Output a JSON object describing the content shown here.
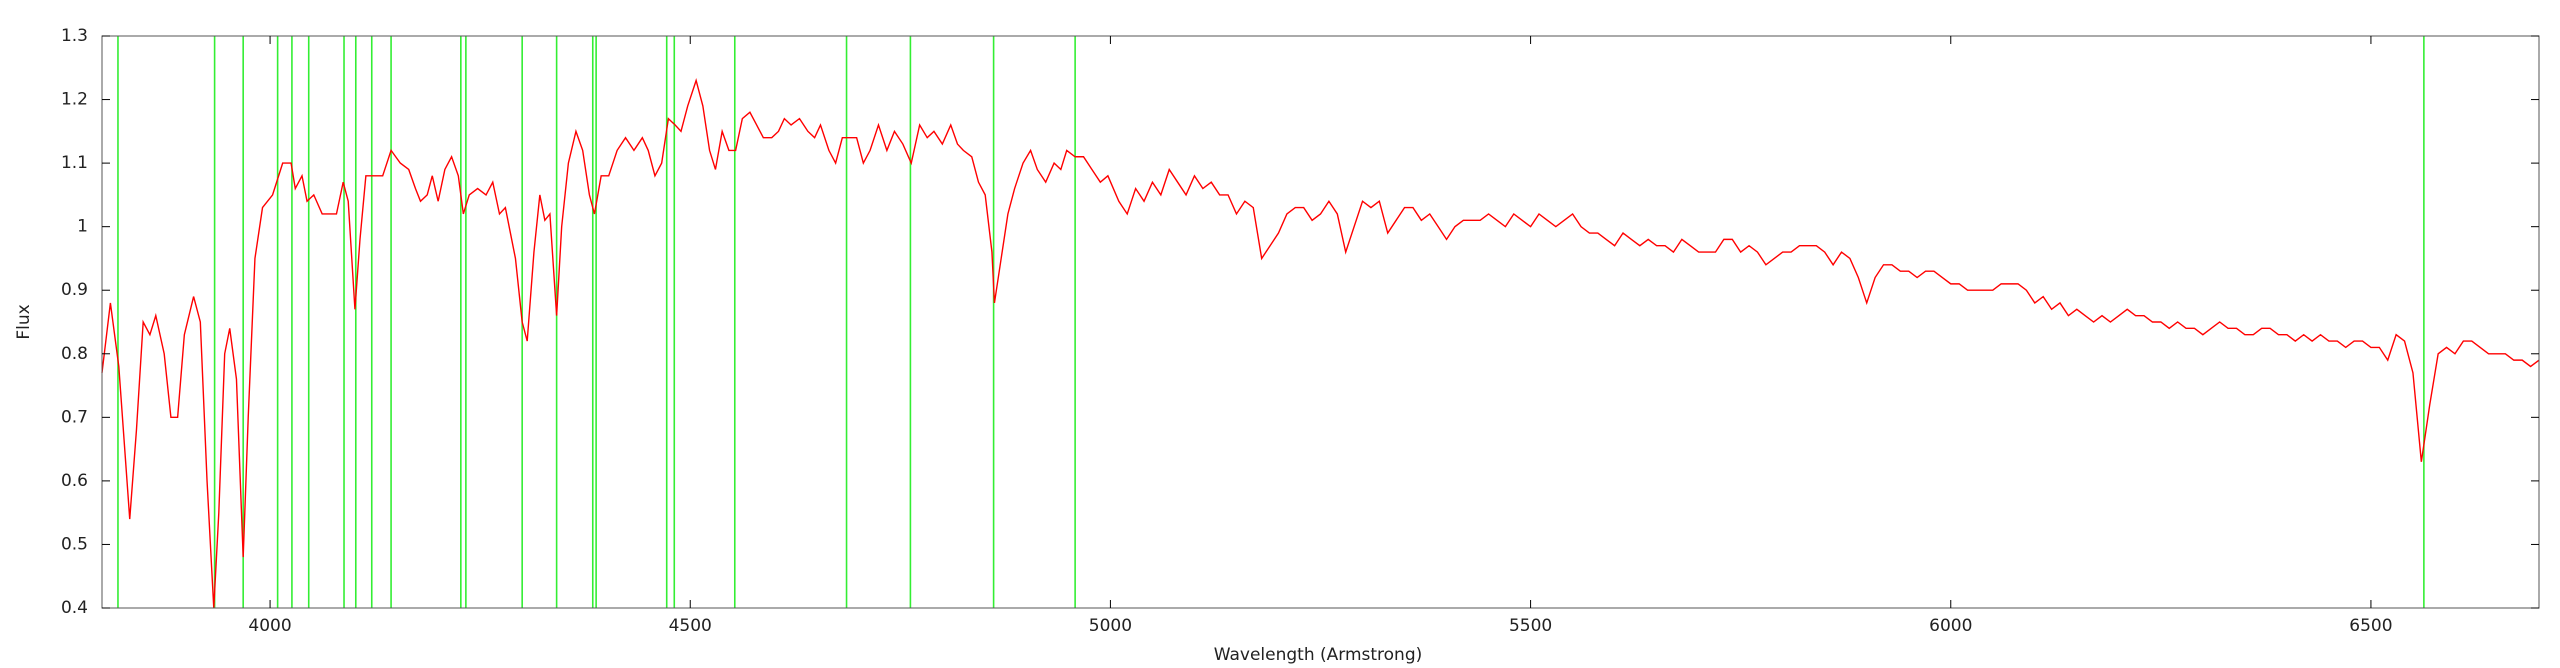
{
  "chart_data": {
    "type": "line",
    "xlabel": "Wavelength (Armstrong)",
    "ylabel": "Flux",
    "color": "#ff0000",
    "vline_color": "#33ee33",
    "xlim": [
      3800,
      6700
    ],
    "ylim": [
      0.4,
      1.3
    ],
    "xticks": [
      4000,
      4500,
      5000,
      5500,
      6000,
      6500
    ],
    "yticks": [
      0.4,
      0.5,
      0.6,
      0.7,
      0.8,
      0.9,
      1,
      1.1,
      1.2,
      1.3
    ],
    "vlines": [
      3819,
      3934,
      3968,
      4009,
      4026,
      4046,
      4088,
      4102,
      4121,
      4144,
      4227,
      4233,
      4300,
      4341,
      4384,
      4388,
      4472,
      4481,
      4553,
      4686,
      4762,
      4861,
      4958,
      6563
    ],
    "x": [
      3800,
      3810,
      3820,
      3833,
      3841,
      3849,
      3857,
      3864,
      3874,
      3882,
      3890,
      3898,
      3909,
      3917,
      3925,
      3933,
      3939,
      3946,
      3952,
      3960,
      3968,
      3974,
      3982,
      3991,
      4003,
      4015,
      4025,
      4030,
      4038,
      4044,
      4052,
      4062,
      4070,
      4079,
      4087,
      4093,
      4101,
      4107,
      4114,
      4124,
      4134,
      4144,
      4155,
      4165,
      4173,
      4179,
      4187,
      4193,
      4200,
      4208,
      4216,
      4224,
      4230,
      4237,
      4247,
      4257,
      4265,
      4273,
      4280,
      4292,
      4300,
      4306,
      4314,
      4321,
      4327,
      4333,
      4341,
      4347,
      4355,
      4364,
      4372,
      4380,
      4386,
      4394,
      4403,
      4413,
      4423,
      4433,
      4443,
      4450,
      4458,
      4466,
      4474,
      4482,
      4489,
      4497,
      4507,
      4515,
      4523,
      4530,
      4538,
      4546,
      4554,
      4562,
      4571,
      4579,
      4587,
      4597,
      4605,
      4612,
      4620,
      4630,
      4640,
      4648,
      4655,
      4665,
      4673,
      4681,
      4691,
      4698,
      4706,
      4714,
      4724,
      4734,
      4743,
      4753,
      4763,
      4773,
      4782,
      4790,
      4800,
      4810,
      4818,
      4825,
      4835,
      4843,
      4851,
      4859,
      4862,
      4870,
      4878,
      4886,
      4896,
      4905,
      4913,
      4923,
      4933,
      4941,
      4948,
      4958,
      4968,
      4978,
      4988,
      4997,
      5010,
      5020,
      5030,
      5040,
      5050,
      5060,
      5070,
      5080,
      5090,
      5100,
      5110,
      5120,
      5130,
      5140,
      5150,
      5160,
      5170,
      5180,
      5190,
      5200,
      5210,
      5220,
      5230,
      5240,
      5250,
      5260,
      5270,
      5280,
      5290,
      5300,
      5310,
      5320,
      5330,
      5340,
      5350,
      5360,
      5370,
      5380,
      5390,
      5400,
      5410,
      5420,
      5430,
      5440,
      5450,
      5460,
      5470,
      5480,
      5490,
      5500,
      5510,
      5520,
      5530,
      5540,
      5550,
      5560,
      5570,
      5580,
      5590,
      5600,
      5610,
      5620,
      5630,
      5640,
      5650,
      5660,
      5670,
      5680,
      5690,
      5700,
      5710,
      5720,
      5730,
      5740,
      5750,
      5760,
      5770,
      5780,
      5790,
      5800,
      5810,
      5820,
      5830,
      5840,
      5850,
      5860,
      5870,
      5880,
      5890,
      5900,
      5910,
      5920,
      5930,
      5940,
      5950,
      5960,
      5970,
      5980,
      5990,
      6000,
      6010,
      6020,
      6030,
      6040,
      6050,
      6060,
      6070,
      6080,
      6090,
      6100,
      6110,
      6120,
      6130,
      6140,
      6150,
      6160,
      6170,
      6180,
      6190,
      6200,
      6210,
      6220,
      6230,
      6240,
      6250,
      6260,
      6270,
      6280,
      6290,
      6300,
      6310,
      6320,
      6330,
      6340,
      6350,
      6360,
      6370,
      6380,
      6390,
      6400,
      6410,
      6420,
      6430,
      6440,
      6450,
      6460,
      6470,
      6480,
      6490,
      6500,
      6510,
      6520,
      6530,
      6540,
      6550,
      6560,
      6570,
      6580,
      6590,
      6600,
      6610,
      6620,
      6630,
      6640,
      6650,
      6660,
      6670,
      6680,
      6690,
      6700
    ],
    "values": [
      0.77,
      0.88,
      0.78,
      0.54,
      0.68,
      0.85,
      0.83,
      0.86,
      0.8,
      0.7,
      0.7,
      0.83,
      0.89,
      0.85,
      0.6,
      0.4,
      0.55,
      0.8,
      0.84,
      0.76,
      0.48,
      0.7,
      0.95,
      1.03,
      1.05,
      1.1,
      1.1,
      1.06,
      1.08,
      1.04,
      1.05,
      1.02,
      1.02,
      1.02,
      1.07,
      1.04,
      0.87,
      0.98,
      1.08,
      1.08,
      1.08,
      1.12,
      1.1,
      1.09,
      1.06,
      1.04,
      1.05,
      1.08,
      1.04,
      1.09,
      1.11,
      1.08,
      1.02,
      1.05,
      1.06,
      1.05,
      1.07,
      1.02,
      1.03,
      0.95,
      0.85,
      0.82,
      0.96,
      1.05,
      1.01,
      1.02,
      0.86,
      1.0,
      1.1,
      1.15,
      1.12,
      1.05,
      1.02,
      1.08,
      1.08,
      1.12,
      1.14,
      1.12,
      1.14,
      1.12,
      1.08,
      1.1,
      1.17,
      1.16,
      1.15,
      1.19,
      1.23,
      1.19,
      1.12,
      1.09,
      1.15,
      1.12,
      1.12,
      1.17,
      1.18,
      1.16,
      1.14,
      1.14,
      1.15,
      1.17,
      1.16,
      1.17,
      1.15,
      1.14,
      1.16,
      1.12,
      1.1,
      1.14,
      1.14,
      1.14,
      1.1,
      1.12,
      1.16,
      1.12,
      1.15,
      1.13,
      1.1,
      1.16,
      1.14,
      1.15,
      1.13,
      1.16,
      1.13,
      1.12,
      1.11,
      1.07,
      1.05,
      0.96,
      0.88,
      0.95,
      1.02,
      1.06,
      1.1,
      1.12,
      1.09,
      1.07,
      1.1,
      1.09,
      1.12,
      1.11,
      1.11,
      1.09,
      1.07,
      1.08,
      1.04,
      1.02,
      1.06,
      1.04,
      1.07,
      1.05,
      1.09,
      1.07,
      1.05,
      1.08,
      1.06,
      1.07,
      1.05,
      1.05,
      1.02,
      1.04,
      1.03,
      0.95,
      0.97,
      0.99,
      1.02,
      1.03,
      1.03,
      1.01,
      1.02,
      1.04,
      1.02,
      0.96,
      1.0,
      1.04,
      1.03,
      1.04,
      0.99,
      1.01,
      1.03,
      1.03,
      1.01,
      1.02,
      1.0,
      0.98,
      1.0,
      1.01,
      1.01,
      1.01,
      1.02,
      1.01,
      1.0,
      1.02,
      1.01,
      1.0,
      1.02,
      1.01,
      1.0,
      1.01,
      1.02,
      1.0,
      0.99,
      0.99,
      0.98,
      0.97,
      0.99,
      0.98,
      0.97,
      0.98,
      0.97,
      0.97,
      0.96,
      0.98,
      0.97,
      0.96,
      0.96,
      0.96,
      0.98,
      0.98,
      0.96,
      0.97,
      0.96,
      0.94,
      0.95,
      0.96,
      0.96,
      0.97,
      0.97,
      0.97,
      0.96,
      0.94,
      0.96,
      0.95,
      0.92,
      0.88,
      0.92,
      0.94,
      0.94,
      0.93,
      0.93,
      0.92,
      0.93,
      0.93,
      0.92,
      0.91,
      0.91,
      0.9,
      0.9,
      0.9,
      0.9,
      0.91,
      0.91,
      0.91,
      0.9,
      0.88,
      0.89,
      0.87,
      0.88,
      0.86,
      0.87,
      0.86,
      0.85,
      0.86,
      0.85,
      0.86,
      0.87,
      0.86,
      0.86,
      0.85,
      0.85,
      0.84,
      0.85,
      0.84,
      0.84,
      0.83,
      0.84,
      0.85,
      0.84,
      0.84,
      0.83,
      0.83,
      0.84,
      0.84,
      0.83,
      0.83,
      0.82,
      0.83,
      0.82,
      0.83,
      0.82,
      0.82,
      0.81,
      0.82,
      0.82,
      0.81,
      0.81,
      0.79,
      0.83,
      0.82,
      0.77,
      0.63,
      0.72,
      0.8,
      0.81,
      0.8,
      0.82,
      0.82,
      0.81,
      0.8,
      0.8,
      0.8,
      0.79,
      0.79,
      0.78,
      0.79
    ]
  }
}
